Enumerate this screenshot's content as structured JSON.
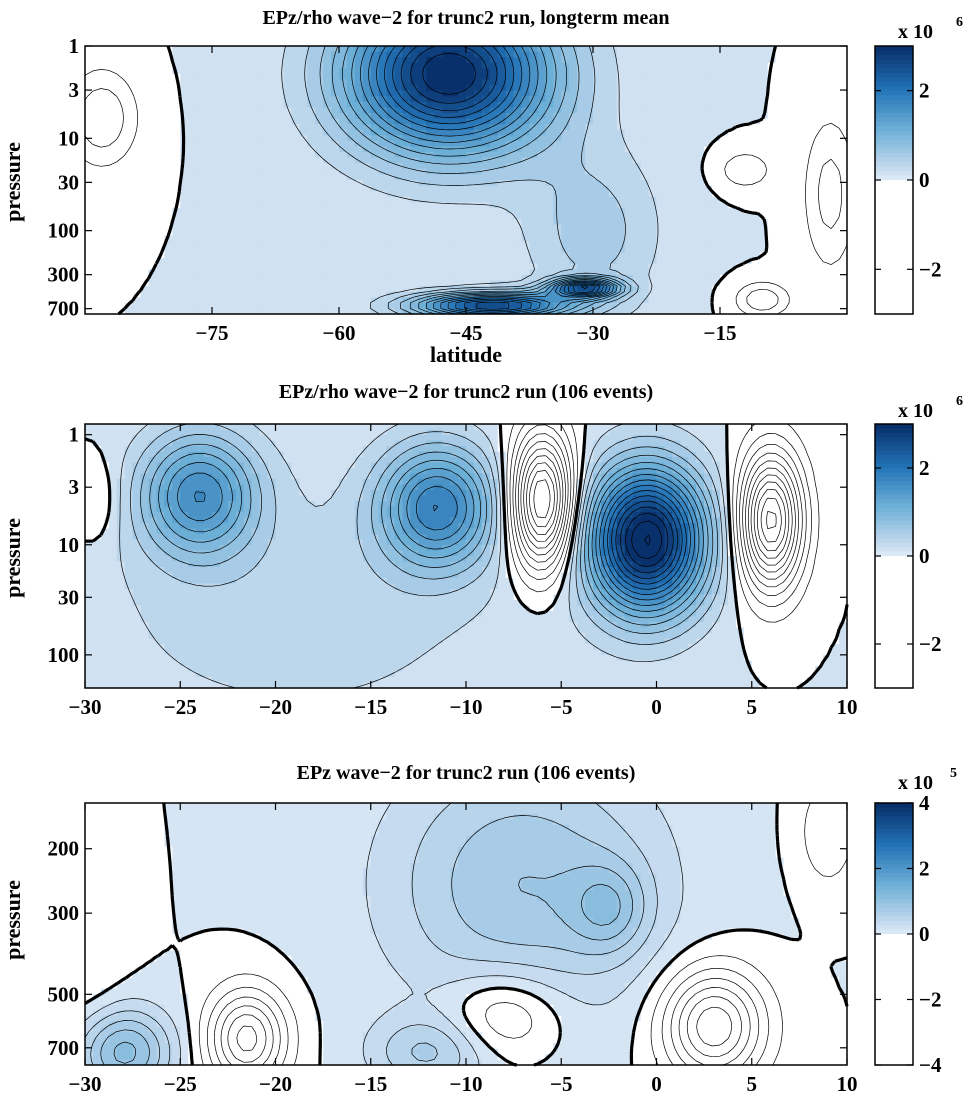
{
  "chart_data": [
    {
      "type": "heatmap",
      "subtype": "filled-contour",
      "title": "EPz/rho wave−2 for trunc2 run, longterm mean",
      "xlabel": "latitude",
      "ylabel": "pressure",
      "xlim": [
        -90,
        0
      ],
      "ylim": [
        1,
        800
      ],
      "y_scale": "log",
      "y_reversed": true,
      "x_ticks": [
        -75,
        -60,
        -45,
        -30,
        -15
      ],
      "x_tick_labels": [
        "−75",
        "−60",
        "−45",
        "−30",
        "−15"
      ],
      "y_ticks": [
        1,
        3,
        10,
        30,
        100,
        300,
        700
      ],
      "y_tick_labels": [
        "1",
        "3",
        "10",
        "30",
        "100",
        "300",
        "700"
      ],
      "colorbar": {
        "range": [
          -3000000,
          3000000
        ],
        "ticks": [
          -2,
          0,
          2
        ],
        "tick_labels": [
          "−2",
          "0",
          "2"
        ],
        "exponent_label": "x 10",
        "exponent": "6"
      },
      "features": [
        {
          "x": -47,
          "y": 2,
          "value": 3000000,
          "sx": 12,
          "sy": 0.85
        },
        {
          "x": -42,
          "y": 650,
          "value": 2600000,
          "sx": 9,
          "sy": 0.14
        },
        {
          "x": -31,
          "y": 420,
          "value": 2400000,
          "sx": 4,
          "sy": 0.1
        },
        {
          "x": -30,
          "y": 100,
          "value": 500000,
          "sx": 8,
          "sy": 0.9
        },
        {
          "x": -12,
          "y": 22,
          "value": -400000,
          "sx": 3,
          "sy": 0.2
        },
        {
          "x": -88,
          "y": 6,
          "value": -600000,
          "sx": 4,
          "sy": 0.5
        },
        {
          "x": -2,
          "y": 40,
          "value": -500000,
          "sx": 3,
          "sy": 0.8
        },
        {
          "x": -10,
          "y": 560,
          "value": -600000,
          "sx": 3,
          "sy": 0.18
        }
      ],
      "contour_step": 200000
    },
    {
      "type": "heatmap",
      "subtype": "filled-contour",
      "title": "EPz/rho wave−2 for trunc2 run (106 events)",
      "ylabel": "pressure",
      "xlim": [
        -30,
        10
      ],
      "ylim": [
        0.8,
        200
      ],
      "y_scale": "log",
      "y_reversed": true,
      "x_ticks": [
        -30,
        -25,
        -20,
        -15,
        -10,
        -5,
        0,
        5,
        10
      ],
      "x_tick_labels": [
        "−30",
        "−25",
        "−20",
        "−15",
        "−10",
        "−5",
        "0",
        "5",
        "10"
      ],
      "y_ticks": [
        1,
        3,
        10,
        30,
        100
      ],
      "y_tick_labels": [
        "1",
        "3",
        "10",
        "30",
        "100"
      ],
      "colorbar": {
        "range": [
          -3000000,
          3000000
        ],
        "ticks": [
          -2,
          0,
          2
        ],
        "tick_labels": [
          "−2",
          "0",
          "2"
        ],
        "exponent_label": "x 10",
        "exponent": "6"
      },
      "features": [
        {
          "x": -24,
          "y": 3.5,
          "value": 1500000,
          "sx": 3,
          "sy": 0.55
        },
        {
          "x": -11.5,
          "y": 4.5,
          "value": 1700000,
          "sx": 3,
          "sy": 0.55
        },
        {
          "x": -0.5,
          "y": 9,
          "value": 3200000,
          "sx": 3,
          "sy": 0.65
        },
        {
          "x": -6,
          "y": 4,
          "value": -2400000,
          "sx": 1.6,
          "sy": 0.6
        },
        {
          "x": 6,
          "y": 6,
          "value": -2300000,
          "sx": 1.6,
          "sy": 0.6
        },
        {
          "x": -29.5,
          "y": 4,
          "value": -300000,
          "sx": 1.3,
          "sy": 0.4
        },
        {
          "x": -19,
          "y": 40,
          "value": 300000,
          "sx": 12,
          "sy": 1.2
        }
      ],
      "contour_step": 200000
    },
    {
      "type": "heatmap",
      "subtype": "filled-contour",
      "title": "EPz wave−2 for trunc2 run (106 events)",
      "ylabel": "pressure",
      "xlim": [
        -30,
        10
      ],
      "ylim": [
        150,
        780
      ],
      "y_scale": "log",
      "y_reversed": true,
      "x_ticks": [
        -30,
        -25,
        -20,
        -15,
        -10,
        -5,
        0,
        5,
        10
      ],
      "x_tick_labels": [
        "−30",
        "−25",
        "−20",
        "−15",
        "−10",
        "−5",
        "0",
        "5",
        "10"
      ],
      "y_ticks": [
        200,
        300,
        500,
        700
      ],
      "y_tick_labels": [
        "200",
        "300",
        "500",
        "700"
      ],
      "colorbar": {
        "range": [
          -400000,
          400000
        ],
        "ticks": [
          -4,
          -2,
          0,
          2,
          4
        ],
        "tick_labels": [
          "−4",
          "−2",
          "0",
          "2",
          "4"
        ],
        "exponent_label": "x 10",
        "exponent": "5"
      },
      "features": [
        {
          "x": -7,
          "y": 250,
          "value": 80000,
          "sx": 7,
          "sy": 0.35
        },
        {
          "x": -2.5,
          "y": 290,
          "value": 60000,
          "sx": 2,
          "sy": 0.12
        },
        {
          "x": -28,
          "y": 720,
          "value": 110000,
          "sx": 2.5,
          "sy": 0.12
        },
        {
          "x": -12,
          "y": 720,
          "value": 60000,
          "sx": 3,
          "sy": 0.1
        },
        {
          "x": -21.5,
          "y": 660,
          "value": -130000,
          "sx": 2,
          "sy": 0.13
        },
        {
          "x": -8,
          "y": 570,
          "value": -60000,
          "sx": 3,
          "sy": 0.12
        },
        {
          "x": 3,
          "y": 610,
          "value": -140000,
          "sx": 2.6,
          "sy": 0.15
        },
        {
          "x": 9,
          "y": 180,
          "value": -40000,
          "sx": 1.5,
          "sy": 0.15
        },
        {
          "x": -30,
          "y": 400,
          "value": -20000,
          "sx": 2,
          "sy": 0.3
        }
      ],
      "contour_step": 20000
    }
  ],
  "colors": {
    "max": "#08306b",
    "high": "#2171b5",
    "mid": "#6baed6",
    "low": "#c6dbef",
    "zero": "#ffffff",
    "line": "#000000"
  }
}
